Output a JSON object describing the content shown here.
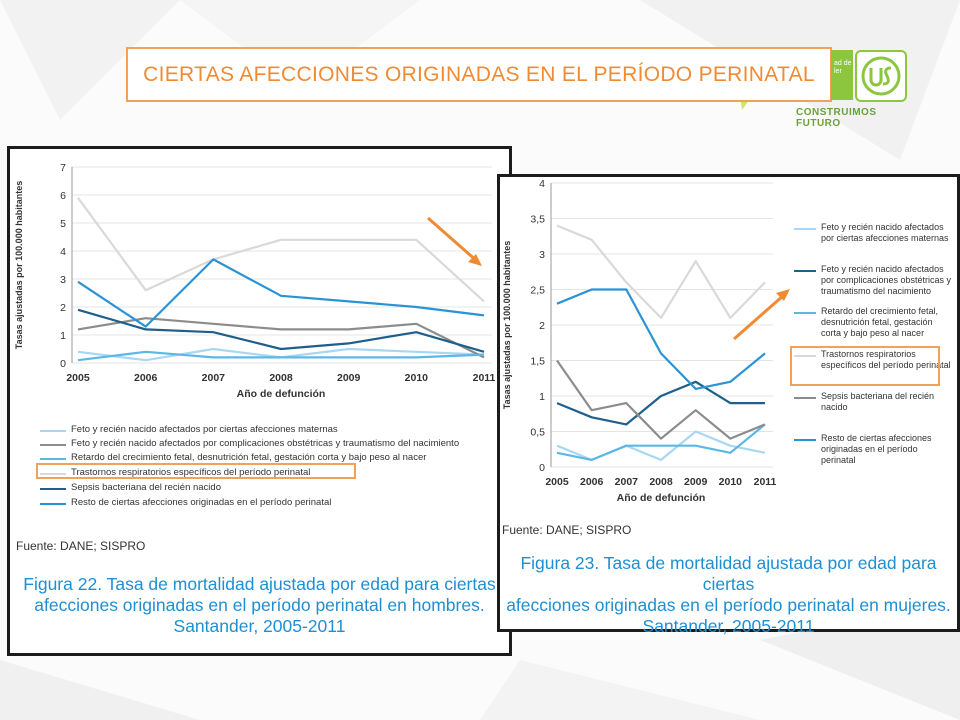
{
  "slide": {
    "title": "CIERTAS AFECCIONES ORIGINADAS EN EL PERÍODO PERINATAL",
    "logo_text": "ad de ler",
    "logo_caption": "CONSTRUIMOS FUTURO",
    "accent_color": "#f0a15a"
  },
  "figures": [
    {
      "source": "Fuente: DANE; SISPRO",
      "caption_lines": [
        "Figura 22. Tasa de mortalidad ajustada por edad para ciertas",
        "afecciones originadas en el período perinatal en hombres.",
        "Santander, 2005-2011"
      ],
      "highlighted_legend": "Trastornos respiratorios específicos del período perinatal"
    },
    {
      "source": "Fuente: DANE; SISPRO",
      "caption_lines": [
        "Figura 23. Tasa de mortalidad ajustada por edad para ciertas",
        "afecciones originadas en el período perinatal en mujeres.",
        "Santander, 2005-2011"
      ],
      "highlighted_legend": "Trastornos respiratorios específicos del período perinatal"
    }
  ],
  "chart_data": [
    {
      "type": "line",
      "x": [
        "2005",
        "2006",
        "2007",
        "2008",
        "2009",
        "2010",
        "2011"
      ],
      "xlabel": "Año de defunción",
      "ylabel": "Tasas ajustadas por 100.000 habitantes",
      "ylim": [
        0,
        7
      ],
      "yticks": [
        "0",
        "1",
        "2",
        "3",
        "4",
        "5",
        "6",
        "7"
      ],
      "grid": "horizontal",
      "legend_position": "bottom",
      "series": [
        {
          "name": "Feto y recién nacido afectados por ciertas afecciones maternas",
          "color": "#a9d7f2",
          "values": [
            0.4,
            0.1,
            0.5,
            0.2,
            0.5,
            0.4,
            0.3
          ]
        },
        {
          "name": "Feto y recién nacido afectados por complicaciones obstétricas y traumatismo del nacimiento",
          "color": "#8c8c8c",
          "values": [
            1.2,
            1.6,
            1.4,
            1.2,
            1.2,
            1.4,
            0.2
          ]
        },
        {
          "name": "Retardo del crecimiento fetal, desnutrición fetal, gestación corta y bajo peso al nacer",
          "color": "#5bb8e6",
          "values": [
            0.1,
            0.4,
            0.2,
            0.2,
            0.2,
            0.2,
            0.3
          ]
        },
        {
          "name": "Trastornos respiratorios específicos del período perinatal",
          "color": "#d9d9d9",
          "values": [
            5.9,
            2.6,
            3.7,
            4.4,
            4.4,
            4.4,
            2.2
          ]
        },
        {
          "name": "Sepsis bacteriana del recién nacido",
          "color": "#1f5f8b",
          "values": [
            1.9,
            1.2,
            1.1,
            0.5,
            0.7,
            1.1,
            0.4
          ]
        },
        {
          "name": "Resto de ciertas afecciones originadas en el período perinatal",
          "color": "#2a93d5",
          "values": [
            2.9,
            1.3,
            3.7,
            2.4,
            2.2,
            2.0,
            1.7
          ]
        }
      ]
    },
    {
      "type": "line",
      "x": [
        "2005",
        "2006",
        "2007",
        "2008",
        "2009",
        "2010",
        "2011"
      ],
      "xlabel": "Año de defunción",
      "ylabel": "Tasas ajustadas por 100.000 habitantes",
      "ylim": [
        0,
        4
      ],
      "yticks": [
        "0",
        "0,5",
        "1",
        "1,5",
        "2",
        "2,5",
        "3",
        "3,5",
        "4"
      ],
      "grid": "horizontal",
      "legend_position": "right",
      "series": [
        {
          "name": "Feto y recién nacido afectados por ciertas afecciones maternas",
          "color": "#a9d7f2",
          "values": [
            0.3,
            0.1,
            0.3,
            0.1,
            0.5,
            0.3,
            0.2
          ]
        },
        {
          "name": "Feto y recién nacido afectados por complicaciones obstétricas y traumatismo del nacimiento",
          "color": "#1f5f8b",
          "values": [
            0.9,
            0.7,
            0.6,
            1.0,
            1.2,
            0.9,
            0.9
          ]
        },
        {
          "name": "Retardo del crecimiento fetal, desnutrición fetal, gestación corta y bajo peso al nacer",
          "color": "#5bb8e6",
          "values": [
            0.2,
            0.1,
            0.3,
            0.3,
            0.3,
            0.2,
            0.6
          ]
        },
        {
          "name": "Trastornos respiratorios específicos del período perinatal",
          "color": "#d9d9d9",
          "values": [
            3.4,
            3.2,
            2.6,
            2.1,
            2.9,
            2.1,
            2.6
          ]
        },
        {
          "name": "Sepsis bacteriana del recién nacido",
          "color": "#8c8c8c",
          "values": [
            1.5,
            0.8,
            0.9,
            0.4,
            0.8,
            0.4,
            0.6
          ]
        },
        {
          "name": "Resto de ciertas afecciones originadas en el período perinatal",
          "color": "#2a93d5",
          "values": [
            2.3,
            2.5,
            2.5,
            1.6,
            1.1,
            1.2,
            1.6
          ]
        }
      ]
    }
  ]
}
